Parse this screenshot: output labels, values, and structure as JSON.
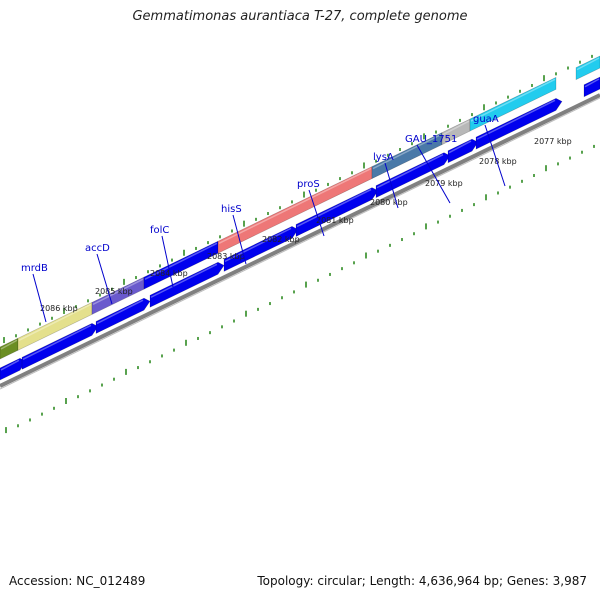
{
  "title": "Gemmatimonas aurantiaca T-27, complete genome",
  "footer": {
    "accession": "Accession: NC_012489",
    "summary": "Topology: circular; Length: 4,636,964 bp; Genes: 3,987"
  },
  "colors": {
    "cds": "#0000ee",
    "tick": "#2e8b22",
    "backbone": "#808080",
    "gene_label": "#0000cc",
    "scale_label": "#222222"
  },
  "scale_ticks": [
    "2086 kbp",
    "2085 kbp",
    "2084 kbp",
    "2083 kbp",
    "2082 kbp",
    "2081 kbp",
    "2080 kbp",
    "2079 kbp",
    "2078 kbp",
    "2077 kbp"
  ],
  "genes": [
    {
      "name": "mrdB",
      "color": "#e4e08c"
    },
    {
      "name": "accD",
      "color": "#6a5acd"
    },
    {
      "name": "folC",
      "color": "#0000ee"
    },
    {
      "name": "hisS",
      "color": "#ee7777"
    },
    {
      "name": "proS",
      "color": "#ee7777"
    },
    {
      "name": "lysA",
      "color": "#4a79a8"
    },
    {
      "name": "GAU_1751",
      "color": "#b8b8b8"
    },
    {
      "name": "guaA",
      "color": "#22ccee"
    }
  ]
}
